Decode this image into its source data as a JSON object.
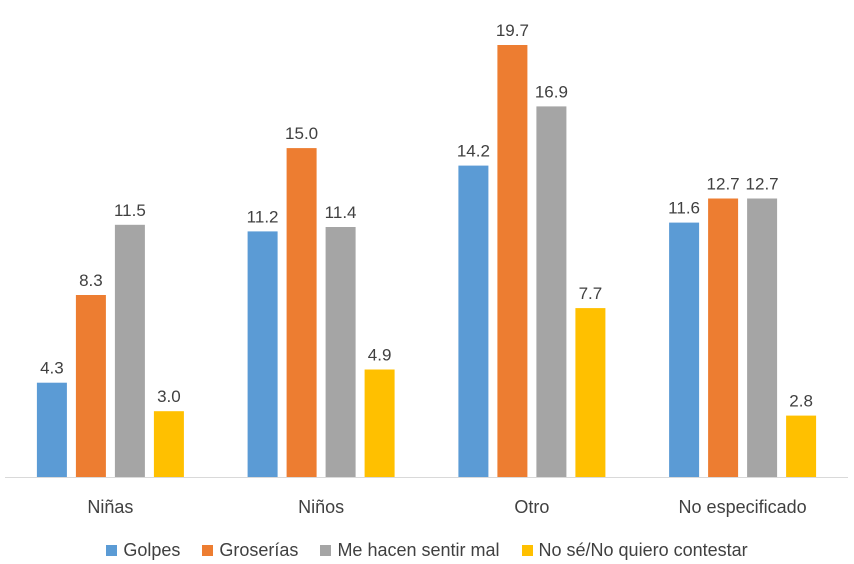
{
  "chart_data": {
    "type": "bar",
    "categories": [
      "Niñas",
      "Niños",
      "Otro",
      "No especificado"
    ],
    "series": [
      {
        "name": "Golpes",
        "color": "#5B9BD5",
        "values": [
          4.3,
          11.2,
          14.2,
          11.6
        ]
      },
      {
        "name": "Groserías",
        "color": "#ED7D31",
        "values": [
          8.3,
          15.0,
          19.7,
          12.7
        ]
      },
      {
        "name": "Me hacen sentir mal",
        "color": "#A5A5A5",
        "values": [
          11.5,
          11.4,
          16.9,
          12.7
        ]
      },
      {
        "name": "No sé/No quiero contestar",
        "color": "#FFC000",
        "values": [
          3.0,
          4.9,
          7.7,
          2.8
        ]
      }
    ],
    "value_labels": [
      [
        "4.3",
        "11.2",
        "14.2",
        "11.6"
      ],
      [
        "8.3",
        "15.0",
        "19.7",
        "12.7"
      ],
      [
        "11.5",
        "11.4",
        "16.9",
        "12.7"
      ],
      [
        "3.0",
        "4.9",
        "7.7",
        "2.8"
      ]
    ],
    "ylim": [
      0,
      20
    ],
    "grid": false,
    "legend_position": "bottom",
    "title": "",
    "xlabel": "",
    "ylabel": ""
  }
}
